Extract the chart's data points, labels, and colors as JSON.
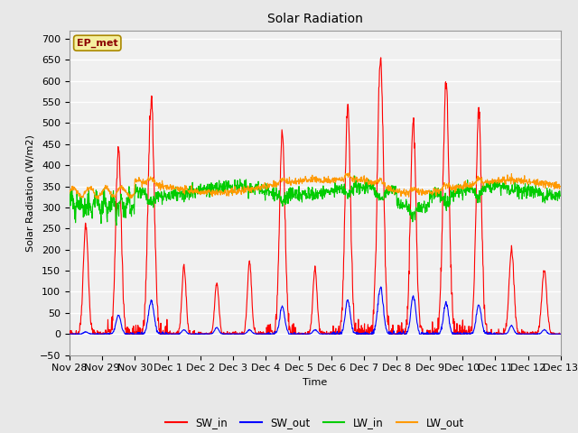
{
  "title": "Solar Radiation",
  "ylabel": "Solar Radiation (W/m2)",
  "xlabel": "Time",
  "ylim": [
    -50,
    720
  ],
  "yticks": [
    -50,
    0,
    50,
    100,
    150,
    200,
    250,
    300,
    350,
    400,
    450,
    500,
    550,
    600,
    650,
    700
  ],
  "background_color": "#e8e8e8",
  "plot_bg_color": "#f0f0f0",
  "grid_color": "#ffffff",
  "legend_label": "EP_met",
  "series_colors": {
    "SW_in": "#ff0000",
    "SW_out": "#0000ff",
    "LW_in": "#00cc00",
    "LW_out": "#ff9900"
  },
  "n_days": 15,
  "xtick_labels": [
    "Nov 28",
    "Nov 29",
    "Nov 30",
    "Dec 1",
    "Dec 2",
    "Dec 3",
    "Dec 4",
    "Dec 5",
    "Dec 6",
    "Dec 7",
    "Dec 8",
    "Dec 9",
    "Dec 10",
    "Dec 11",
    "Dec 12",
    "Dec 13"
  ],
  "sw_in_peaks": [
    260,
    440,
    560,
    160,
    120,
    170,
    475,
    155,
    540,
    660,
    505,
    595,
    530,
    200,
    150
  ],
  "sw_out_peaks": [
    5,
    45,
    80,
    10,
    15,
    10,
    65,
    10,
    80,
    110,
    90,
    75,
    70,
    20,
    10
  ],
  "sw_in_widths": [
    1.8,
    2.0,
    2.2,
    1.5,
    1.5,
    1.5,
    2.0,
    1.5,
    2.0,
    2.2,
    2.0,
    2.2,
    2.0,
    1.8,
    1.8
  ],
  "sw_out_widths": [
    1.5,
    1.8,
    2.0,
    1.5,
    1.5,
    1.5,
    1.8,
    1.5,
    1.8,
    2.0,
    1.8,
    1.8,
    1.8,
    1.5,
    1.5
  ]
}
